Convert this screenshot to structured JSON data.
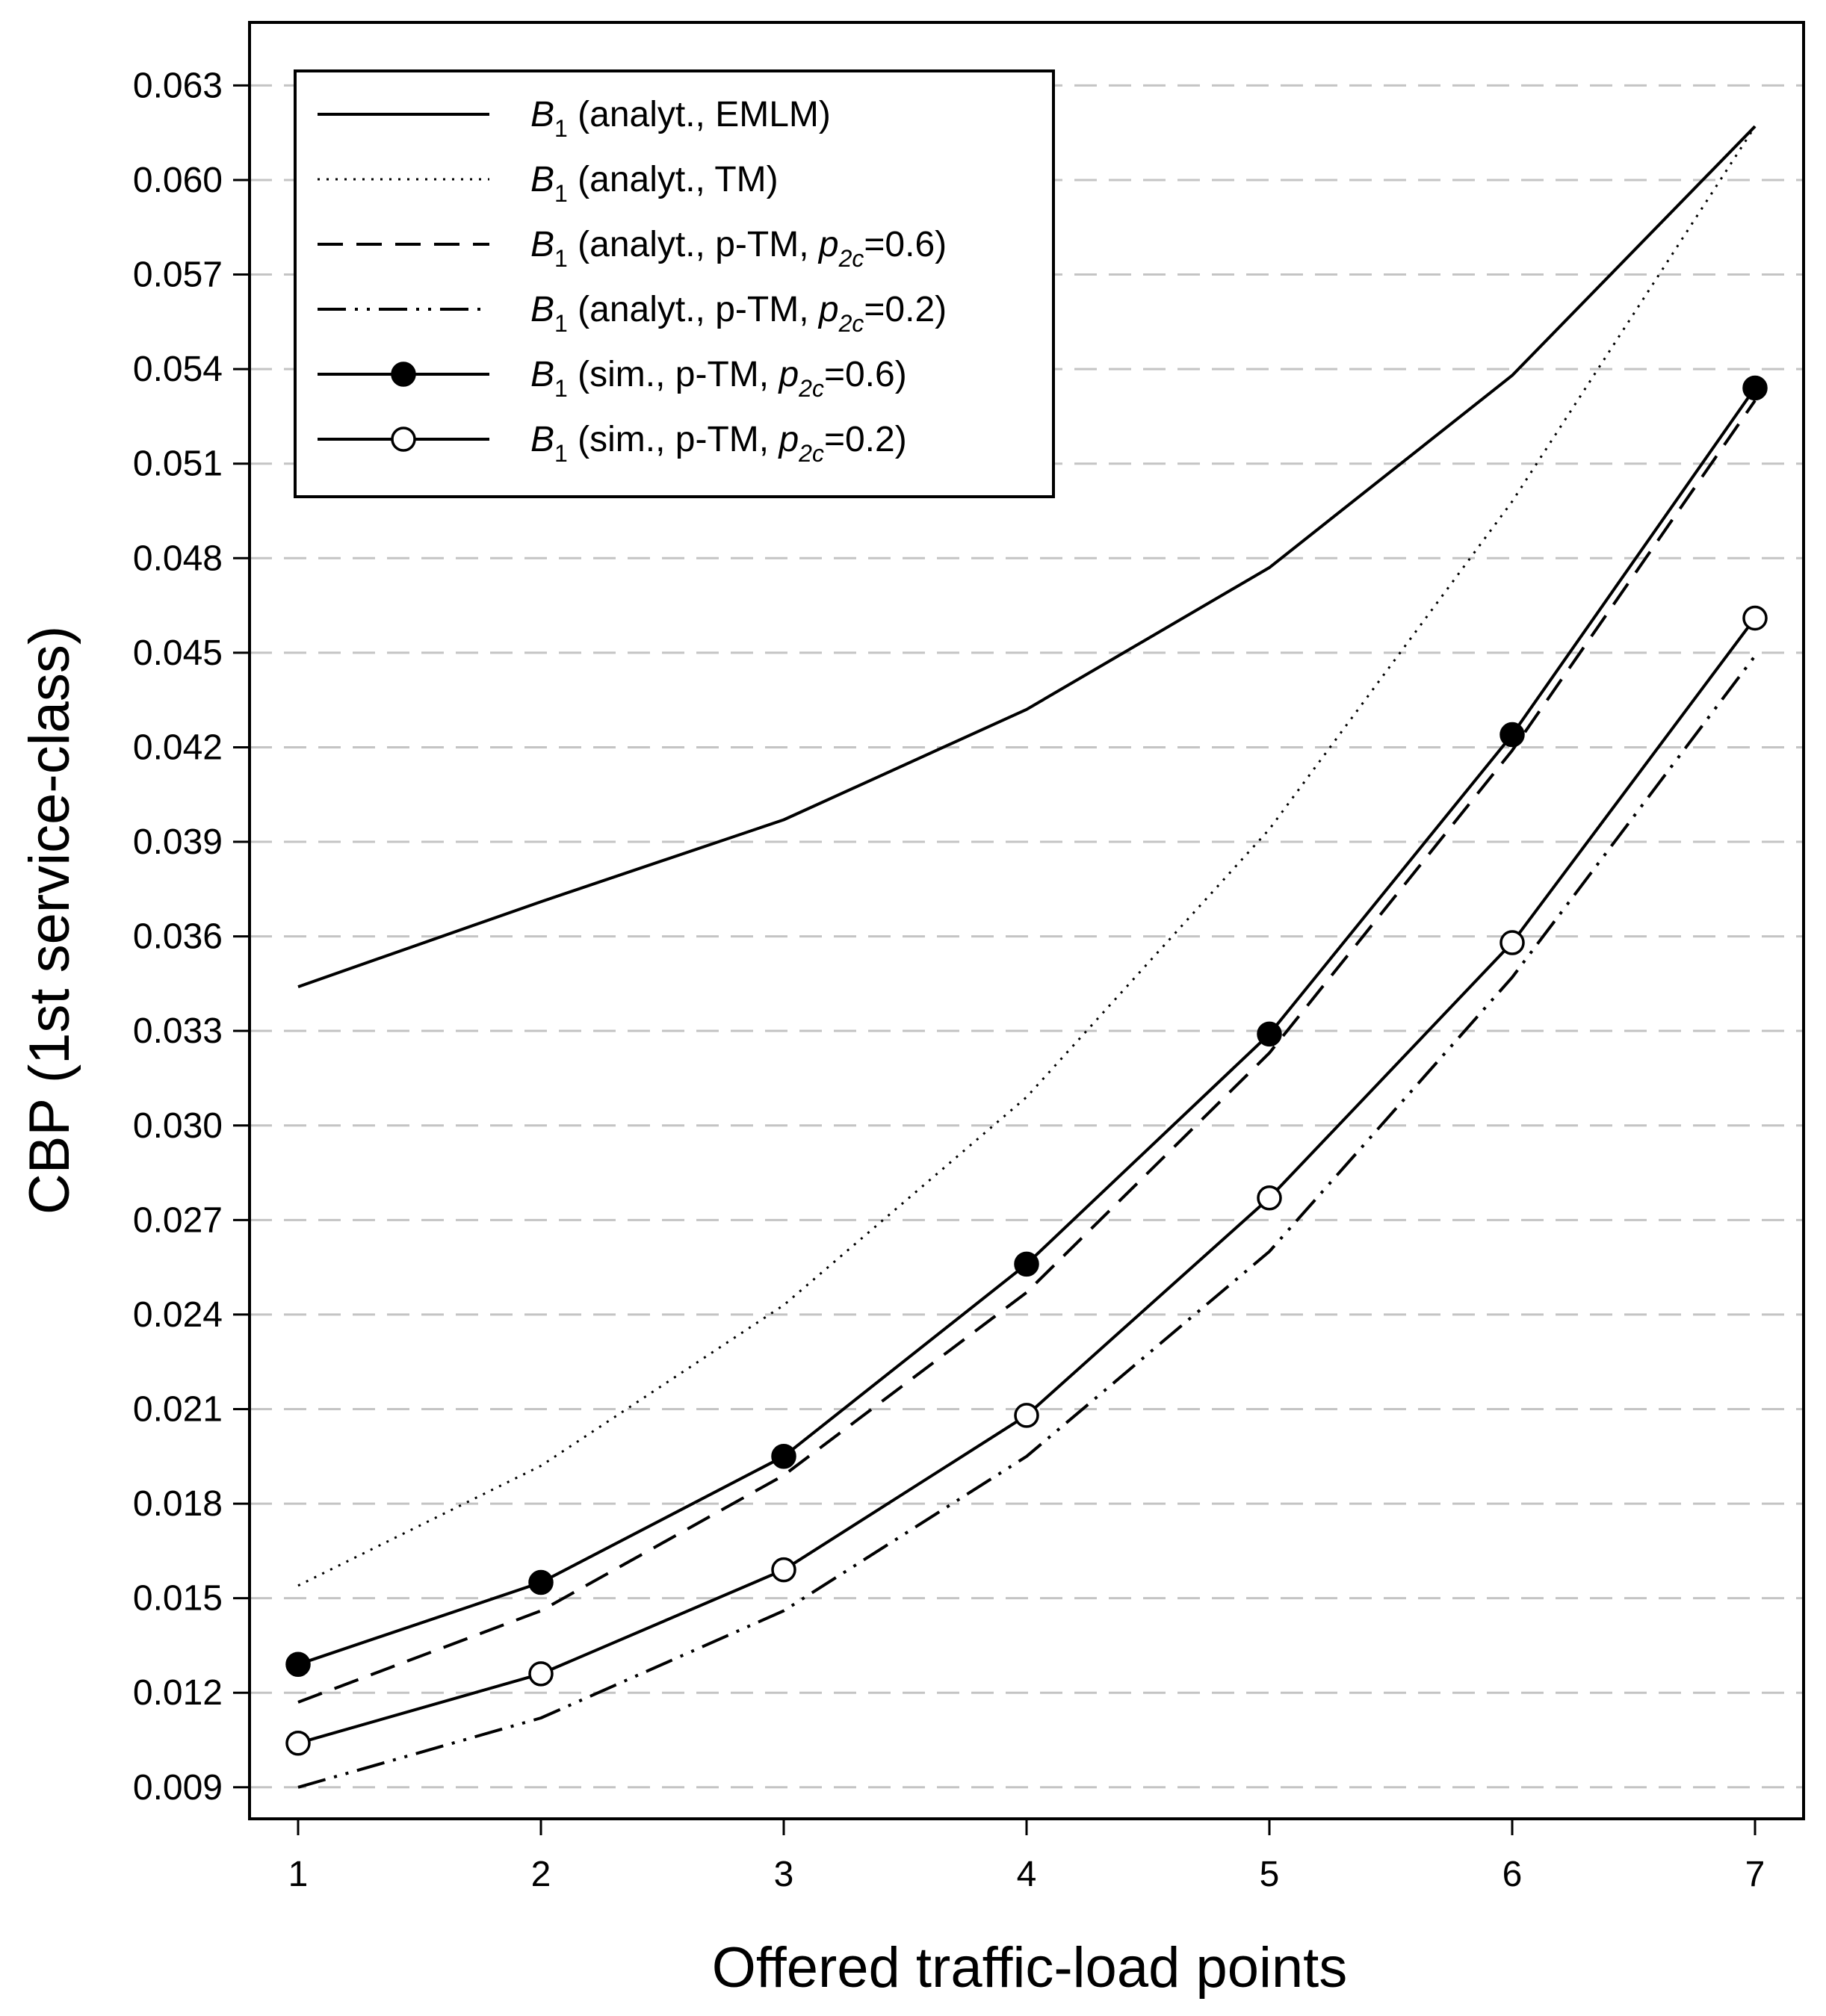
{
  "chart_data": {
    "type": "line",
    "title": "",
    "xlabel": "Offered traffic-load points",
    "ylabel": "CBP (1st service-class)",
    "x": [
      1,
      2,
      3,
      4,
      5,
      6,
      7
    ],
    "xticks": [
      "1",
      "2",
      "3",
      "4",
      "5",
      "6",
      "7"
    ],
    "xlim": [
      0.8,
      7.2
    ],
    "ylim": [
      0.008,
      0.065
    ],
    "yticks": [
      "0.009",
      "0.012",
      "0.015",
      "0.018",
      "0.021",
      "0.024",
      "0.027",
      "0.030",
      "0.033",
      "0.036",
      "0.039",
      "0.042",
      "0.045",
      "0.048",
      "0.051",
      "0.054",
      "0.057",
      "0.060",
      "0.063"
    ],
    "grid": "horizontal dashed",
    "legend_position": "top-left",
    "series": [
      {
        "id": "emlm",
        "name": "B1 (analyt., EMLM)",
        "legend": {
          "sym": "B",
          "sub": "1",
          "pre": " (analyt., EMLM)",
          "p": "",
          "psub": "",
          "post": ""
        },
        "line_style": "solid",
        "marker": "none",
        "values": [
          0.0344,
          0.0371,
          0.0397,
          0.0432,
          0.0477,
          0.0538,
          0.0617
        ]
      },
      {
        "id": "tm",
        "name": "B1 (analyt., TM)",
        "legend": {
          "sym": "B",
          "sub": "1",
          "pre": " (analyt., TM)",
          "p": "",
          "psub": "",
          "post": ""
        },
        "line_style": "dotted",
        "marker": "none",
        "values": [
          0.0154,
          0.0192,
          0.0243,
          0.0309,
          0.0394,
          0.0498,
          0.0617
        ]
      },
      {
        "id": "ptm06",
        "name": "B1 (analyt., p-TM, p2c=0.6)",
        "legend": {
          "sym": "B",
          "sub": "1",
          "pre": " (analyt., p-TM, ",
          "p": "p",
          "psub": "2c",
          "post": "=0.6)"
        },
        "line_style": "dashed",
        "marker": "none",
        "values": [
          0.0117,
          0.0146,
          0.0189,
          0.0247,
          0.0323,
          0.0419,
          0.053
        ]
      },
      {
        "id": "ptm02",
        "name": "B1 (analyt., p-TM, p2c=0.2)",
        "legend": {
          "sym": "B",
          "sub": "1",
          "pre": " (analyt., p-TM, ",
          "p": "p",
          "psub": "2c",
          "post": "=0.2)"
        },
        "line_style": "dash-dot-dot",
        "marker": "none",
        "values": [
          0.009,
          0.0112,
          0.0146,
          0.0195,
          0.026,
          0.0347,
          0.0449
        ]
      },
      {
        "id": "sim06",
        "name": "B1 (sim., p-TM, p2c=0.6)",
        "legend": {
          "sym": "B",
          "sub": "1",
          "pre": " (sim., p-TM, ",
          "p": "p",
          "psub": "2c",
          "post": "=0.6)"
        },
        "line_style": "solid",
        "marker": "filled-circle",
        "values": [
          0.0129,
          0.0155,
          0.0195,
          0.0256,
          0.0329,
          0.0424,
          0.0534
        ]
      },
      {
        "id": "sim02",
        "name": "B1 (sim., p-TM, p2c=0.2)",
        "legend": {
          "sym": "B",
          "sub": "1",
          "pre": " (sim., p-TM, ",
          "p": "p",
          "psub": "2c",
          "post": "=0.2)"
        },
        "line_style": "solid",
        "marker": "open-circle",
        "values": [
          0.0104,
          0.0126,
          0.0159,
          0.0208,
          0.0277,
          0.0358,
          0.0461
        ]
      }
    ]
  }
}
